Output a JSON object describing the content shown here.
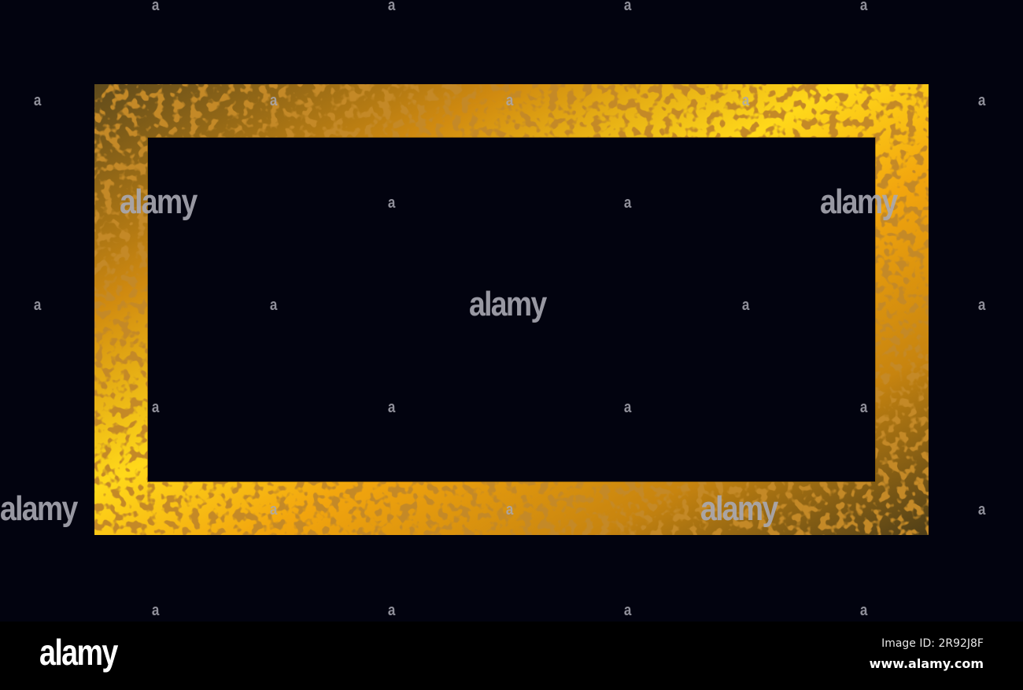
{
  "colors": {
    "background": "#02030f",
    "gold_bright": "#ffe11a",
    "gold_mid": "#e8a00c",
    "gold_dark": "#6b4a10",
    "bar": "#000000"
  },
  "watermark": {
    "small": "a",
    "large": "alamy"
  },
  "footer": {
    "logo": "alamy",
    "image_id": "Image ID: 2R92J8F",
    "url": "www.alamy.com"
  }
}
